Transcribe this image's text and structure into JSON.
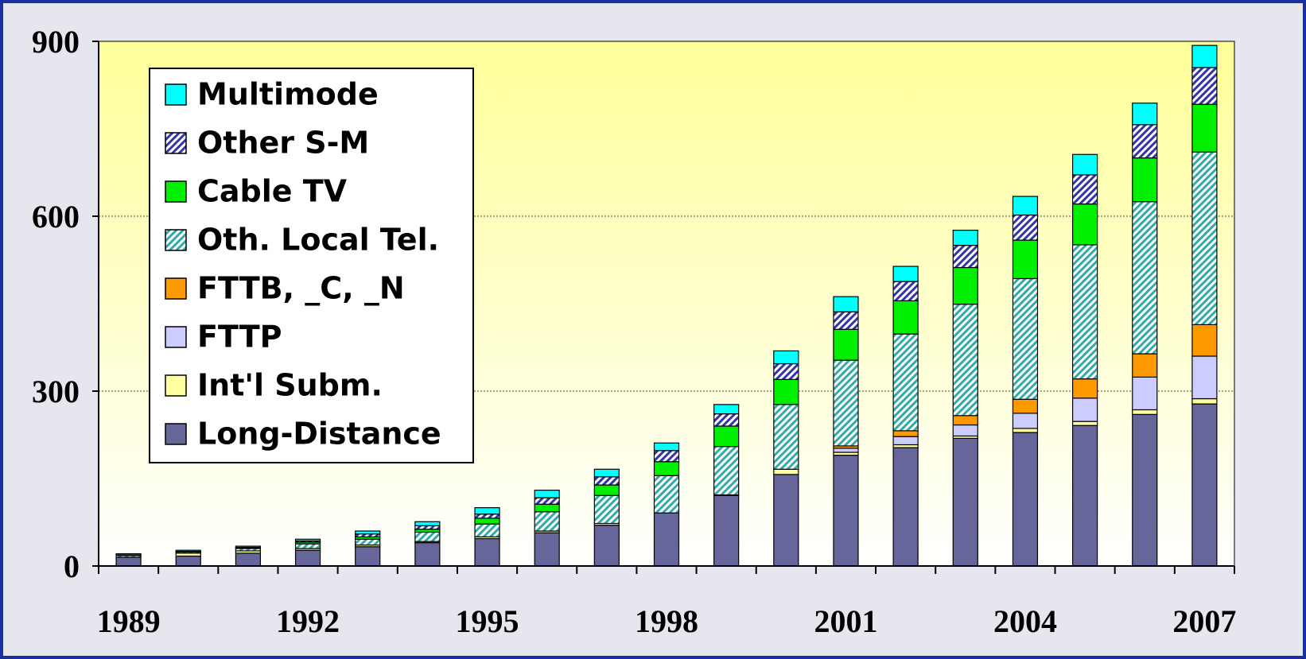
{
  "chart_data": {
    "type": "stacked_bar",
    "categories": [
      "1989",
      null,
      null,
      "1992",
      null,
      null,
      "1995",
      null,
      null,
      "1998",
      null,
      null,
      "2001",
      null,
      null,
      "2004",
      null,
      null,
      "2007"
    ],
    "series": [
      {
        "name": "Long-Distance",
        "color": "#66669a",
        "values": [
          15,
          17,
          22,
          27,
          33,
          40,
          47,
          57,
          70,
          91,
          121,
          157,
          190,
          203,
          219,
          229,
          241,
          260,
          278
        ]
      },
      {
        "name": "Int'l Subm.",
        "color": "#ffffa0",
        "values": [
          0,
          5,
          4,
          3,
          3,
          2,
          3,
          3,
          3,
          0,
          1,
          9,
          5,
          5,
          4,
          7,
          7,
          8,
          9
        ]
      },
      {
        "name": "FTTP",
        "color": "#ccccff",
        "values": [
          0,
          0,
          0,
          0,
          0,
          0,
          0,
          0,
          0,
          0,
          0,
          0,
          7,
          14,
          19,
          26,
          40,
          56,
          73
        ]
      },
      {
        "name": "FTTB, _C, _N",
        "color": "#ff9900",
        "values": [
          0,
          0,
          0,
          0,
          0,
          0,
          0,
          0,
          0,
          0,
          0,
          0,
          4,
          10,
          16,
          24,
          33,
          40,
          54
        ]
      },
      {
        "name": "Oth. Local Tel.",
        "color": "#33aaaa",
        "hatch": true,
        "values": [
          3,
          2,
          4,
          8,
          10,
          16,
          22,
          33,
          48,
          64,
          83,
          111,
          147,
          166,
          191,
          207,
          230,
          261,
          296
        ]
      },
      {
        "name": "Cable TV",
        "color": "#00ee00",
        "values": [
          0,
          0,
          1,
          3,
          4,
          5,
          10,
          13,
          18,
          24,
          35,
          43,
          53,
          57,
          63,
          66,
          70,
          75,
          82
        ]
      },
      {
        "name": "Other S-M",
        "color": "#3333aa",
        "hatch": true,
        "values": [
          1,
          1,
          1,
          2,
          5,
          6,
          7,
          11,
          14,
          19,
          21,
          27,
          30,
          33,
          38,
          43,
          50,
          57,
          63
        ]
      },
      {
        "name": "Multimode",
        "color": "#00ffff",
        "values": [
          2,
          2,
          2,
          3,
          5,
          7,
          11,
          13,
          13,
          13,
          16,
          22,
          26,
          26,
          26,
          32,
          35,
          37,
          38
        ]
      }
    ],
    "ylim": [
      0,
      900
    ],
    "yticks": [
      0,
      300,
      600,
      900
    ],
    "grid": true,
    "legend": "upper left"
  }
}
